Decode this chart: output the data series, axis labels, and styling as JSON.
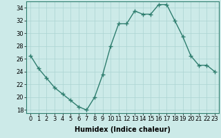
{
  "x": [
    0,
    1,
    2,
    3,
    4,
    5,
    6,
    7,
    8,
    9,
    10,
    11,
    12,
    13,
    14,
    15,
    16,
    17,
    18,
    19,
    20,
    21,
    22,
    23
  ],
  "y": [
    26.5,
    24.5,
    23.0,
    21.5,
    20.5,
    19.5,
    18.5,
    18.0,
    20.0,
    23.5,
    28.0,
    31.5,
    31.5,
    33.5,
    33.0,
    33.0,
    34.5,
    34.5,
    32.0,
    29.5,
    26.5,
    25.0,
    25.0,
    24.0
  ],
  "line_color": "#2e7d6e",
  "marker": "+",
  "marker_size": 4.0,
  "bg_color": "#cceae8",
  "grid_color": "#aad4d2",
  "xlabel": "Humidex (Indice chaleur)",
  "xlabel_fontsize": 7,
  "ylabel_ticks": [
    18,
    20,
    22,
    24,
    26,
    28,
    30,
    32,
    34
  ],
  "xtick_labels": [
    "0",
    "1",
    "2",
    "3",
    "4",
    "5",
    "6",
    "7",
    "8",
    "9",
    "10",
    "11",
    "12",
    "13",
    "14",
    "15",
    "16",
    "17",
    "18",
    "19",
    "20",
    "21",
    "22",
    "23"
  ],
  "ylim": [
    17.5,
    35.0
  ],
  "xlim": [
    -0.5,
    23.5
  ],
  "tick_fontsize": 6.0,
  "spine_color": "#2e7d6e",
  "linewidth": 1.0,
  "marker_lw": 1.0
}
